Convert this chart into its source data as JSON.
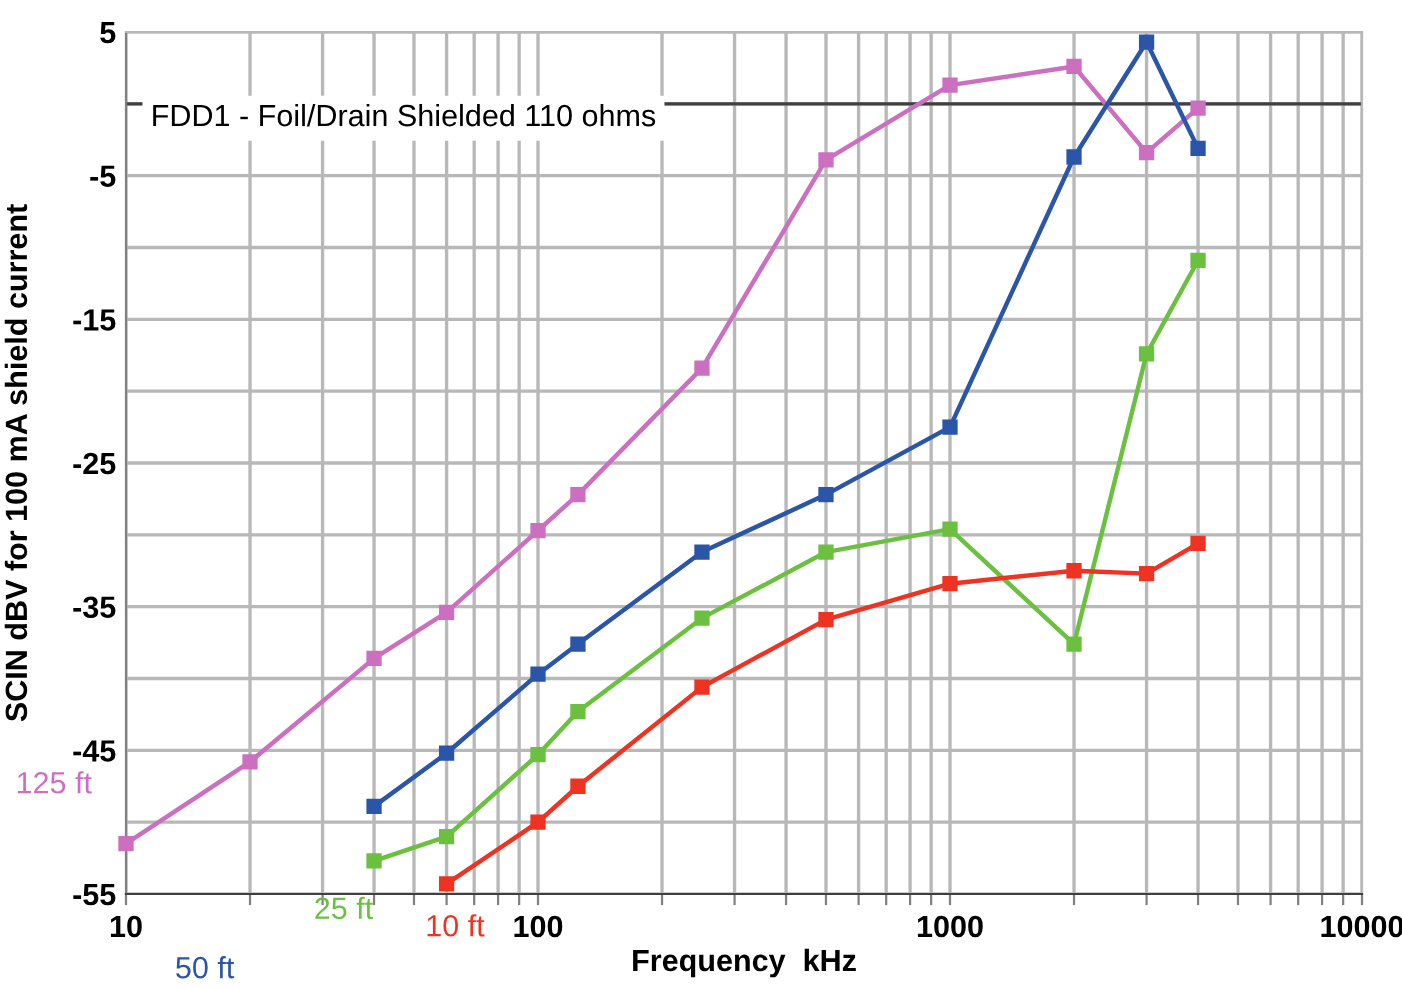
{
  "chart_data": {
    "type": "line",
    "xlabel": "Frequency  kHz",
    "ylabel": "SCIN dBV for 100 mA shield current",
    "annotations": [
      "FDD1 - Foil/Drain Shielded 110 ohms"
    ],
    "log": "x",
    "xlim": [
      10,
      10000
    ],
    "xticks": [
      10,
      {
        "value": 20,
        "label": null
      },
      {
        "value": 30,
        "label": null
      },
      {
        "value": 40,
        "label": null
      },
      {
        "value": 50,
        "label": null
      },
      {
        "value": 60,
        "label": null
      },
      {
        "value": 70,
        "label": null
      },
      {
        "value": 80,
        "label": null
      },
      {
        "value": 90,
        "label": null
      },
      100,
      {
        "value": 200,
        "label": null
      },
      {
        "value": 300,
        "label": null
      },
      {
        "value": 400,
        "label": null
      },
      {
        "value": 500,
        "label": null
      },
      {
        "value": 600,
        "label": null
      },
      {
        "value": 700,
        "label": null
      },
      {
        "value": 800,
        "label": null
      },
      {
        "value": 900,
        "label": null
      },
      1000,
      {
        "value": 2000,
        "label": null
      },
      {
        "value": 3000,
        "label": null
      },
      {
        "value": 4000,
        "label": null
      },
      {
        "value": 5000,
        "label": null
      },
      {
        "value": 6000,
        "label": null
      },
      {
        "value": 7000,
        "label": null
      },
      {
        "value": 8000,
        "label": null
      },
      {
        "value": 9000,
        "label": null
      },
      10000
    ],
    "ylim": [
      -55,
      5
    ],
    "yticks": [
      5,
      {
        "value": 0,
        "label": null
      },
      -5,
      {
        "value": -10,
        "label": null
      },
      -15,
      {
        "value": -20,
        "label": null
      },
      -25,
      {
        "value": -30,
        "label": null
      },
      -35,
      {
        "value": -40,
        "label": null
      },
      -45,
      {
        "value": -50,
        "label": null
      },
      -55
    ],
    "grid": true,
    "marker": "square",
    "line_style": "solid",
    "ref_lines": [
      {
        "axis": "y",
        "value": 0,
        "color": "#404040"
      }
    ],
    "series": [
      {
        "name": "125 ft",
        "color": "#cc6fc0",
        "x": [
          10,
          20,
          40,
          60,
          100,
          125,
          250,
          500,
          1000,
          2000,
          3000,
          4000
        ],
        "values": [
          -51.5,
          -45.8,
          -38.6,
          -35.4,
          -29.7,
          -27.2,
          -18.4,
          -3.9,
          1.3,
          2.6,
          -3.4,
          -0.3
        ]
      },
      {
        "name": "50 ft",
        "color": "#2a55a8",
        "x": [
          40,
          60,
          100,
          125,
          250,
          500,
          1000,
          2000,
          3000,
          4000
        ],
        "values": [
          -48.9,
          -45.2,
          -39.7,
          -37.6,
          -31.2,
          -27.2,
          -22.5,
          -3.7,
          4.3,
          -3.1
        ]
      },
      {
        "name": "25 ft",
        "color": "#6cc040",
        "x": [
          40,
          60,
          100,
          125,
          250,
          500,
          1000,
          2000,
          3000,
          4000
        ],
        "values": [
          -52.7,
          -51.0,
          -45.3,
          -42.3,
          -35.8,
          -31.2,
          -29.6,
          -37.6,
          -17.4,
          -10.9
        ]
      },
      {
        "name": "10 ft",
        "color": "#ee3322",
        "x": [
          60,
          100,
          125,
          250,
          500,
          1000,
          2000,
          3000,
          4000
        ],
        "values": [
          -54.3,
          -50.0,
          -47.5,
          -40.6,
          -35.9,
          -33.4,
          -32.5,
          -32.7,
          -30.6
        ]
      }
    ]
  }
}
